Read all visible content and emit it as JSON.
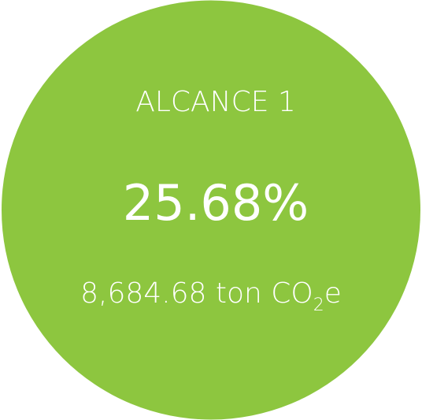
{
  "badge": {
    "title": "ALCANCE 1",
    "percent": "25.68%",
    "amount": {
      "main": "8,684.68 ton CO",
      "subscript": "2",
      "suffix": "e"
    }
  }
}
